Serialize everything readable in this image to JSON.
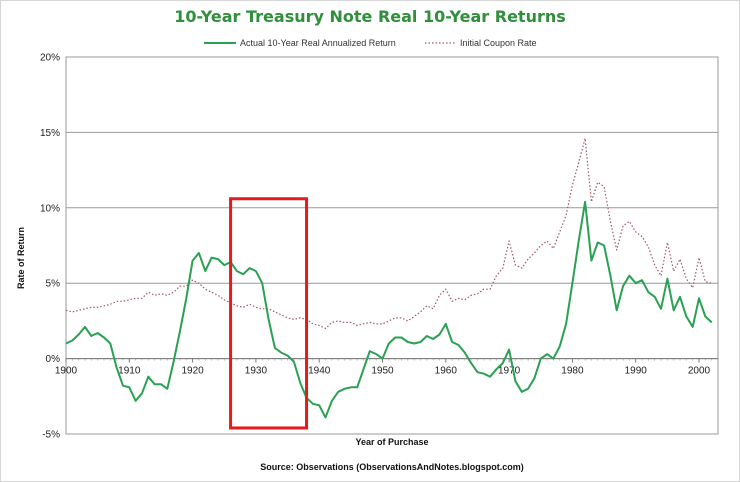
{
  "chart_data": {
    "type": "line",
    "title": "10-Year Treasury Note Real 10-Year Returns",
    "xlabel": "Year of Purchase",
    "ylabel": "Rate of Return",
    "xlim": [
      1900,
      2003
    ],
    "ylim": [
      -5,
      20
    ],
    "x_ticks": [
      1900,
      1910,
      1920,
      1930,
      1940,
      1950,
      1960,
      1970,
      1980,
      1990,
      2000
    ],
    "y_ticks": [
      -5,
      0,
      5,
      10,
      15,
      20
    ],
    "y_tick_labels": [
      "-5%",
      "0%",
      "5%",
      "10%",
      "15%",
      "20%"
    ],
    "grid": "horizontal",
    "legend_position": "top",
    "source": "Source: Observations (ObservationsAndNotes.blogspot.com)",
    "highlight": {
      "x_range": [
        1926,
        1938
      ],
      "y_range": [
        -4.6,
        10.6
      ],
      "color": "#e41a1c"
    },
    "series": [
      {
        "name": "Actual 10-Year Real Annualized Return",
        "style": "solid",
        "color": "#2aa152",
        "x": [
          1900,
          1901,
          1902,
          1903,
          1904,
          1905,
          1906,
          1907,
          1908,
          1909,
          1910,
          1911,
          1912,
          1913,
          1914,
          1915,
          1916,
          1917,
          1918,
          1919,
          1920,
          1921,
          1922,
          1923,
          1924,
          1925,
          1926,
          1927,
          1928,
          1929,
          1930,
          1931,
          1932,
          1933,
          1934,
          1935,
          1936,
          1937,
          1938,
          1939,
          1940,
          1941,
          1942,
          1943,
          1944,
          1945,
          1946,
          1947,
          1948,
          1949,
          1950,
          1951,
          1952,
          1953,
          1954,
          1955,
          1956,
          1957,
          1958,
          1959,
          1960,
          1961,
          1962,
          1963,
          1964,
          1965,
          1966,
          1967,
          1968,
          1969,
          1970,
          1971,
          1972,
          1973,
          1974,
          1975,
          1976,
          1977,
          1978,
          1979,
          1980,
          1981,
          1982,
          1983,
          1984,
          1985,
          1986,
          1987,
          1988,
          1989,
          1990,
          1991,
          1992,
          1993,
          1994,
          1995,
          1996,
          1997,
          1998,
          1999,
          2000,
          2001,
          2002
        ],
        "y": [
          1.0,
          1.2,
          1.6,
          2.1,
          1.5,
          1.7,
          1.4,
          1.0,
          -0.6,
          -1.8,
          -1.9,
          -2.8,
          -2.3,
          -1.2,
          -1.7,
          -1.7,
          -2.0,
          -0.2,
          1.8,
          4.0,
          6.5,
          7.0,
          5.8,
          6.7,
          6.6,
          6.2,
          6.4,
          5.8,
          5.6,
          6.0,
          5.8,
          5.0,
          2.6,
          0.7,
          0.4,
          0.2,
          -0.2,
          -1.6,
          -2.6,
          -3.0,
          -3.1,
          -3.9,
          -2.8,
          -2.2,
          -2.0,
          -1.9,
          -1.9,
          -0.7,
          0.5,
          0.3,
          0.0,
          1.0,
          1.4,
          1.4,
          1.1,
          1.0,
          1.1,
          1.5,
          1.3,
          1.6,
          2.3,
          1.1,
          0.9,
          0.4,
          -0.3,
          -0.9,
          -1.0,
          -1.2,
          -0.7,
          -0.3,
          0.6,
          -1.5,
          -2.2,
          -2.0,
          -1.3,
          0.0,
          0.3,
          0.0,
          0.8,
          2.3,
          5.0,
          7.8,
          10.4,
          6.5,
          7.7,
          7.5,
          5.5,
          3.2,
          4.8,
          5.5,
          5.0,
          5.2,
          4.4,
          4.1,
          3.3,
          5.3,
          3.2,
          4.1,
          2.8,
          2.1,
          4.0,
          2.8,
          2.4
        ]
      },
      {
        "name": "Initial Coupon Rate",
        "style": "dotted",
        "color": "#a0566b",
        "x": [
          1900,
          1901,
          1902,
          1903,
          1904,
          1905,
          1906,
          1907,
          1908,
          1909,
          1910,
          1911,
          1912,
          1913,
          1914,
          1915,
          1916,
          1917,
          1918,
          1919,
          1920,
          1921,
          1922,
          1923,
          1924,
          1925,
          1926,
          1927,
          1928,
          1929,
          1930,
          1931,
          1932,
          1933,
          1934,
          1935,
          1936,
          1937,
          1938,
          1939,
          1940,
          1941,
          1942,
          1943,
          1944,
          1945,
          1946,
          1947,
          1948,
          1949,
          1950,
          1951,
          1952,
          1953,
          1954,
          1955,
          1956,
          1957,
          1958,
          1959,
          1960,
          1961,
          1962,
          1963,
          1964,
          1965,
          1966,
          1967,
          1968,
          1969,
          1970,
          1971,
          1972,
          1973,
          1974,
          1975,
          1976,
          1977,
          1978,
          1979,
          1980,
          1981,
          1982,
          1983,
          1984,
          1985,
          1986,
          1987,
          1988,
          1989,
          1990,
          1991,
          1992,
          1993,
          1994,
          1995,
          1996,
          1997,
          1998,
          1999,
          2000,
          2001,
          2002
        ],
        "y": [
          3.2,
          3.1,
          3.2,
          3.3,
          3.4,
          3.4,
          3.5,
          3.6,
          3.8,
          3.8,
          3.9,
          4.0,
          4.0,
          4.4,
          4.2,
          4.3,
          4.2,
          4.4,
          4.8,
          4.8,
          5.2,
          5.0,
          4.6,
          4.4,
          4.2,
          3.9,
          3.7,
          3.5,
          3.4,
          3.6,
          3.4,
          3.3,
          3.3,
          3.1,
          2.9,
          2.7,
          2.6,
          2.7,
          2.6,
          2.3,
          2.2,
          2.0,
          2.4,
          2.5,
          2.4,
          2.4,
          2.2,
          2.3,
          2.4,
          2.3,
          2.3,
          2.5,
          2.7,
          2.7,
          2.5,
          2.8,
          3.1,
          3.5,
          3.3,
          4.2,
          4.6,
          3.8,
          4.0,
          3.9,
          4.2,
          4.3,
          4.6,
          4.6,
          5.5,
          6.0,
          7.8,
          6.2,
          6.0,
          6.6,
          7.0,
          7.5,
          7.8,
          7.3,
          8.4,
          9.5,
          11.5,
          13.0,
          14.6,
          10.4,
          11.7,
          11.4,
          9.1,
          7.2,
          8.8,
          9.1,
          8.4,
          8.1,
          7.4,
          6.2,
          5.5,
          7.7,
          5.8,
          6.6,
          5.3,
          4.7,
          6.7,
          5.1,
          5.0
        ]
      }
    ]
  }
}
